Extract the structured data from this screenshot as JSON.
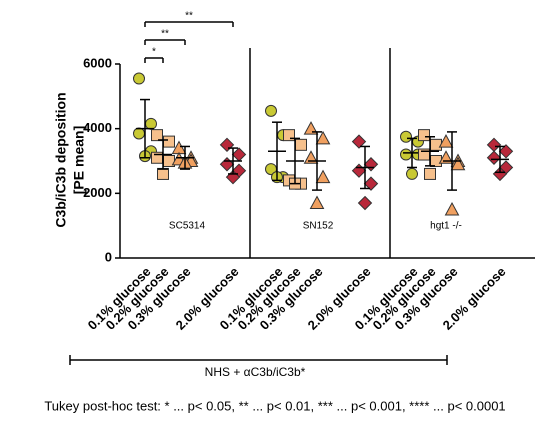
{
  "chart_data": {
    "type": "dot",
    "ylabel": [
      "C3b/iC3b deposition",
      "[PE mean]"
    ],
    "groups": [
      "SC5314",
      "SN152",
      "hgt1 -/-"
    ],
    "ylim": [
      0,
      6000
    ],
    "yticks": [
      0,
      2000,
      4000,
      6000
    ],
    "series": [
      {
        "name": "0.1% glucose",
        "color": "#c9c934",
        "marker": "circle",
        "values": [
          [
            5550,
            4150,
            3850,
            3300,
            3150
          ],
          [
            4550,
            3800,
            2750,
            2500,
            2500
          ],
          [
            3750,
            3600,
            3200,
            3200,
            2600
          ]
        ],
        "mean": [
          4000,
          3300,
          3250
        ],
        "sd": [
          900,
          900,
          450
        ]
      },
      {
        "name": "0.2% glucose",
        "color": "#f6c08c",
        "marker": "square",
        "values": [
          [
            3800,
            3600,
            3100,
            3000,
            2600
          ],
          [
            3800,
            3500,
            2400,
            2300,
            2300
          ],
          [
            3800,
            3500,
            3200,
            3000,
            2600
          ]
        ],
        "mean": [
          3200,
          3000,
          3300
        ],
        "sd": [
          450,
          700,
          450
        ]
      },
      {
        "name": "0.3% glucose",
        "color": "#f0a060",
        "marker": "triangle",
        "values": [
          [
            3400,
            3100,
            3050,
            3000,
            2950
          ],
          [
            4000,
            3700,
            3100,
            2500,
            1700
          ],
          [
            3600,
            3000,
            3100,
            2900,
            1500
          ]
        ],
        "mean": [
          3100,
          3000,
          3000
        ],
        "sd": [
          350,
          900,
          900
        ]
      },
      {
        "name": "2.0% glucose",
        "color": "#b8283a",
        "marker": "diamond",
        "values": [
          [
            3500,
            3200,
            2900,
            2700,
            2500
          ],
          [
            3600,
            2900,
            2700,
            2300,
            1700
          ],
          [
            3500,
            3300,
            3100,
            2800,
            2600
          ]
        ],
        "mean": [
          3000,
          2800,
          3050
        ],
        "sd": [
          400,
          650,
          400
        ]
      }
    ],
    "significance": [
      {
        "from": 0,
        "to": 1,
        "label": "*"
      },
      {
        "from": 0,
        "to": 2,
        "label": "**"
      },
      {
        "from": 0,
        "to": 3,
        "label": "**"
      }
    ],
    "condition": "NHS + αC3b/iC3b*",
    "footnote": "Tukey post-hoc test: * ... p< 0.05, ** ... p< 0.01, *** ... p< 0.001, **** ... p< 0.0001"
  }
}
